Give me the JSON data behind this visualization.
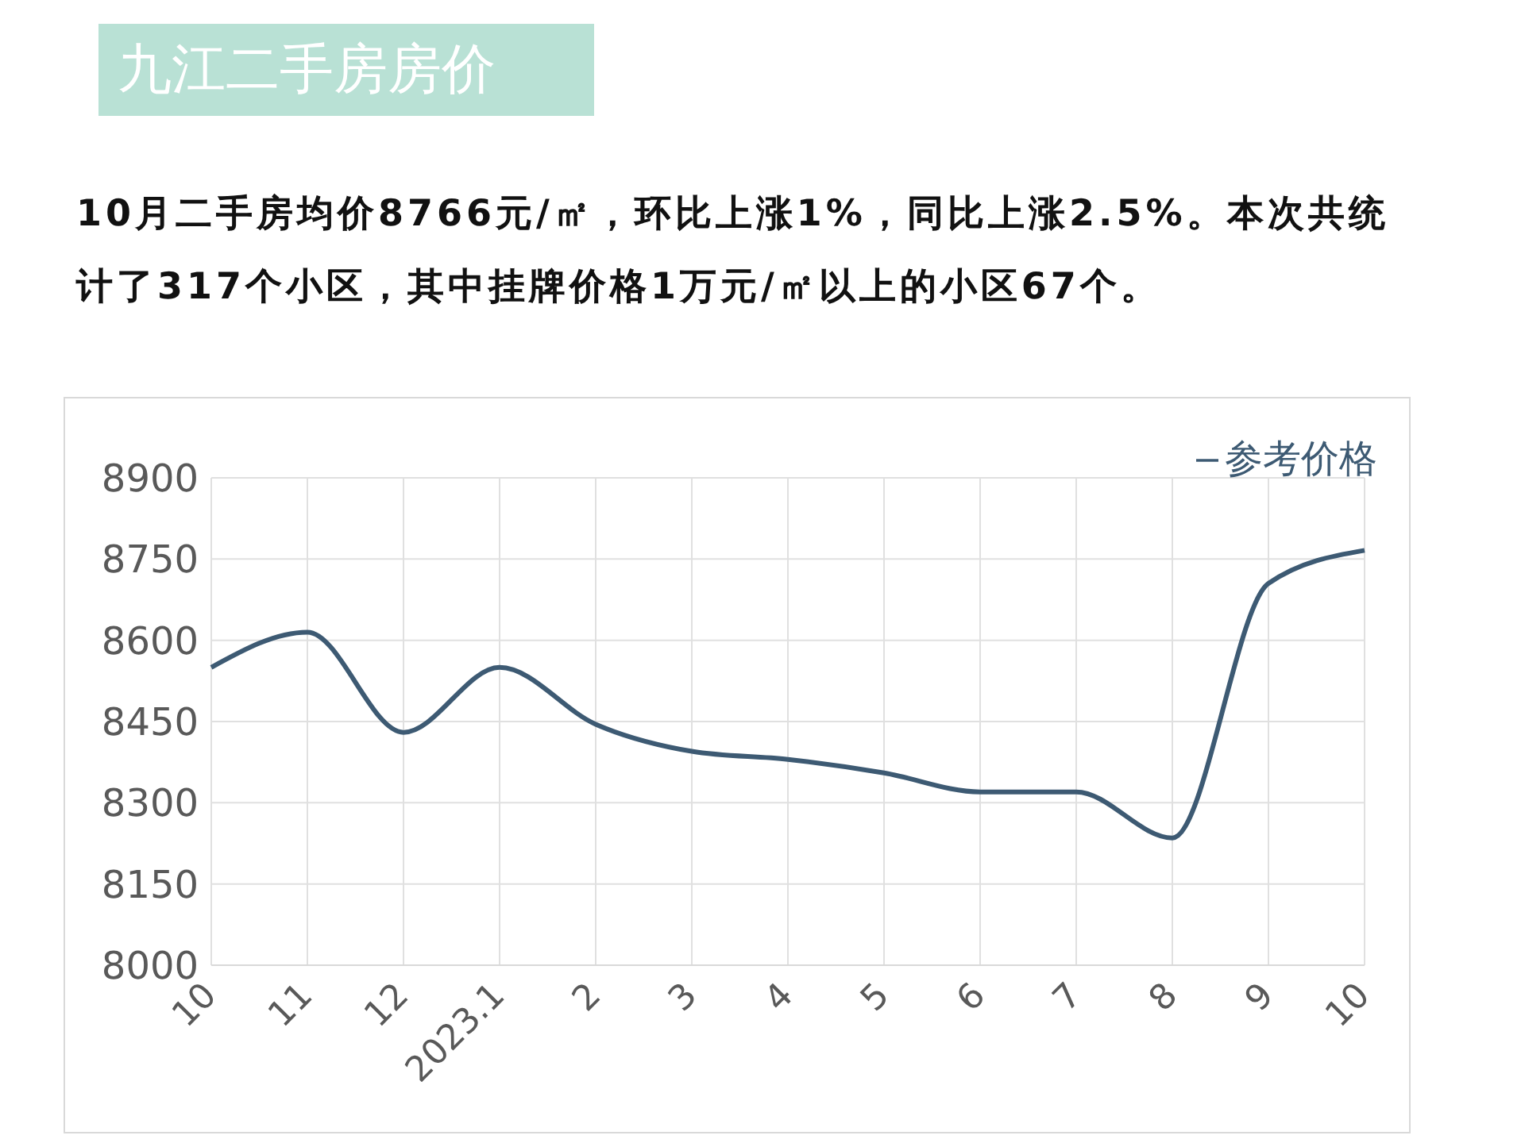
{
  "chart_data": {
    "type": "line",
    "title": "九江二手房房价",
    "subtitle": "10月二手房均价8766元/㎡，环比上涨1%，同比上涨2.5%。本次共统计了317个小区，其中挂牌价格1万元/㎡以上的小区67个。",
    "categories": [
      "10",
      "11",
      "12",
      "2023.1",
      "2",
      "3",
      "4",
      "5",
      "6",
      "7",
      "8",
      "9",
      "10"
    ],
    "series": [
      {
        "name": "参考价格",
        "color": "#3d5a73",
        "values": [
          8550,
          8615,
          8430,
          8550,
          8445,
          8395,
          8380,
          8355,
          8320,
          8320,
          8235,
          8705,
          8766
        ]
      }
    ],
    "ylim": [
      8000,
      8900
    ],
    "yticks": [
      8000,
      8150,
      8300,
      8450,
      8600,
      8750,
      8900
    ],
    "grid": true,
    "legend": "top right",
    "marker": "none",
    "line_style": "solid"
  }
}
